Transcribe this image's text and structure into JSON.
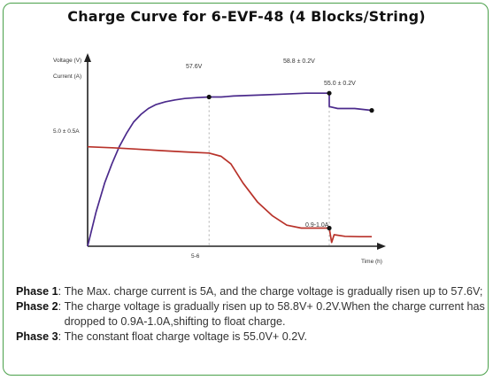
{
  "chart_data": {
    "type": "line",
    "title": "Charge Curve for 6-EVF-48 (4 Blocks/String)",
    "ylabel_voltage": "Voltage (V)",
    "ylabel_current": "Current (A)",
    "xlabel": "Time (h)",
    "x_tick": "5-6",
    "grid": false,
    "series": [
      {
        "label": "voltage",
        "points": [
          [
            0,
            0.0
          ],
          [
            0.35,
            0.18
          ],
          [
            0.7,
            0.33
          ],
          [
            1.0,
            0.43
          ],
          [
            1.3,
            0.52
          ],
          [
            1.6,
            0.59
          ],
          [
            1.9,
            0.65
          ],
          [
            2.2,
            0.69
          ],
          [
            2.5,
            0.72
          ],
          [
            2.8,
            0.74
          ],
          [
            3.2,
            0.755
          ],
          [
            3.6,
            0.765
          ],
          [
            4.0,
            0.772
          ],
          [
            4.5,
            0.777
          ],
          [
            5.0,
            0.78
          ],
          [
            5.5,
            0.78
          ],
          [
            6.0,
            0.785
          ],
          [
            7.0,
            0.79
          ],
          [
            8.0,
            0.795
          ],
          [
            9.0,
            0.8
          ],
          [
            9.95,
            0.8
          ],
          [
            9.95,
            0.73
          ],
          [
            10.3,
            0.72
          ],
          [
            11.0,
            0.72
          ],
          [
            11.7,
            0.71
          ]
        ]
      },
      {
        "label": "current",
        "points": [
          [
            0,
            0.52
          ],
          [
            1.0,
            0.515
          ],
          [
            2.0,
            0.508
          ],
          [
            3.0,
            0.5
          ],
          [
            4.0,
            0.493
          ],
          [
            5.0,
            0.487
          ],
          [
            5.5,
            0.47
          ],
          [
            5.9,
            0.43
          ],
          [
            6.4,
            0.33
          ],
          [
            7.0,
            0.23
          ],
          [
            7.6,
            0.16
          ],
          [
            8.2,
            0.11
          ],
          [
            8.8,
            0.095
          ],
          [
            9.4,
            0.095
          ],
          [
            9.95,
            0.095
          ],
          [
            10.05,
            0.02
          ],
          [
            10.15,
            0.06
          ],
          [
            10.6,
            0.052
          ],
          [
            11.2,
            0.05
          ],
          [
            11.7,
            0.05
          ]
        ]
      }
    ],
    "annotations": {
      "v_phase1": "57.6V",
      "v_phase2": "58.8 ± 0.2V",
      "v_float": "55.0 ± 0.2V",
      "i_max": "5.0 ± 0.5A",
      "i_end": "0.9-1.0A"
    },
    "colors": {
      "voltage": "#4b2a8c",
      "current": "#b8322a",
      "axis": "#222222",
      "guide": "#9a9a9a"
    }
  },
  "notes": [
    {
      "phase": "Phase 1",
      "text": "The Max. charge current is 5A, and the charge voltage is gradually risen up to 57.6V;"
    },
    {
      "phase": "Phase 2",
      "text": "The charge voltage is gradually risen up to 58.8V+ 0.2V.When the charge current has dropped to 0.9A-1.0A,shifting to float charge."
    },
    {
      "phase": "Phase 3",
      "text": "The constant float charge voltage is 55.0V+ 0.2V."
    }
  ]
}
